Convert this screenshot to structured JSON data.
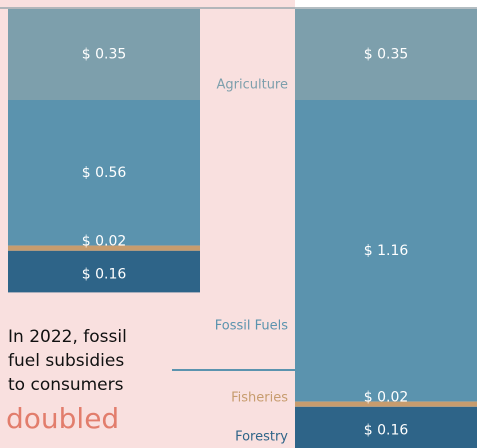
{
  "chart_data": {
    "type": "stacked-bar",
    "categories": [
      null,
      null
    ],
    "series": [
      {
        "name": "Agriculture",
        "color": "#7d9fac",
        "values": [
          0.35,
          0.35
        ],
        "value_labels": [
          "$ 0.35",
          "$ 0.35"
        ]
      },
      {
        "name": "Fossil Fuels",
        "color": "#5b93ae",
        "values": [
          0.56,
          1.16
        ],
        "value_labels": [
          "$ 0.56",
          "$ 1.16"
        ]
      },
      {
        "name": "Fisheries",
        "color": "#c79c6e",
        "values": [
          0.02,
          0.02
        ],
        "value_labels": [
          "$ 0.02",
          "$ 0.02"
        ]
      },
      {
        "name": "Forestry",
        "color": "#2e6488",
        "values": [
          0.16,
          0.16
        ],
        "value_labels": [
          "$ 0.16",
          "$ 0.16"
        ]
      }
    ],
    "annotation": [
      "In 2022, fossil",
      "fuel subsidies",
      "to consumers"
    ],
    "highlight": "doubled",
    "highlight_color": "#e27d6c"
  }
}
